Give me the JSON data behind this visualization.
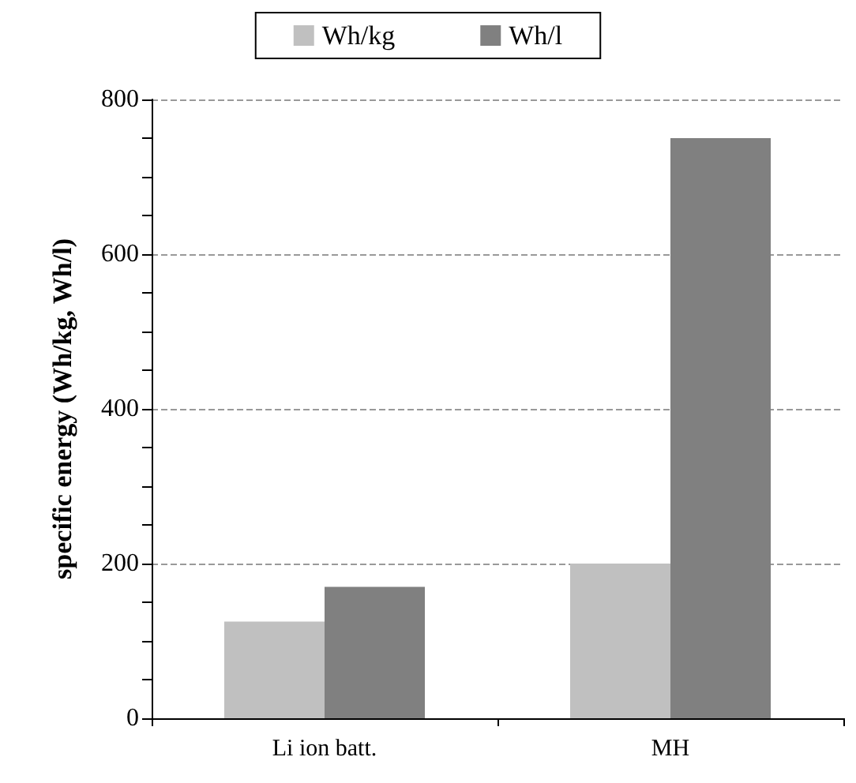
{
  "chart_data": {
    "type": "bar",
    "ylabel": "specific energy (Wh/kg, Wh/l)",
    "categories": [
      "Li ion batt.",
      "MH"
    ],
    "series": [
      {
        "name": "Wh/kg",
        "color": "#c0c0c0",
        "values": [
          125,
          200
        ]
      },
      {
        "name": "Wh/l",
        "color": "#808080",
        "values": [
          170,
          750
        ]
      }
    ],
    "ylim": [
      0,
      800
    ],
    "yticks": [
      0,
      {
        "value": 50,
        "label": null
      },
      {
        "value": 100,
        "label": null
      },
      {
        "value": 150,
        "label": null
      },
      200,
      {
        "value": 250,
        "label": null
      },
      {
        "value": 300,
        "label": null
      },
      {
        "value": 350,
        "label": null
      },
      400,
      {
        "value": 450,
        "label": null
      },
      {
        "value": 500,
        "label": null
      },
      {
        "value": 550,
        "label": null
      },
      600,
      {
        "value": 650,
        "label": null
      },
      {
        "value": 700,
        "label": null
      },
      {
        "value": 750,
        "label": null
      },
      800
    ],
    "grid": "y",
    "legend": "top"
  }
}
